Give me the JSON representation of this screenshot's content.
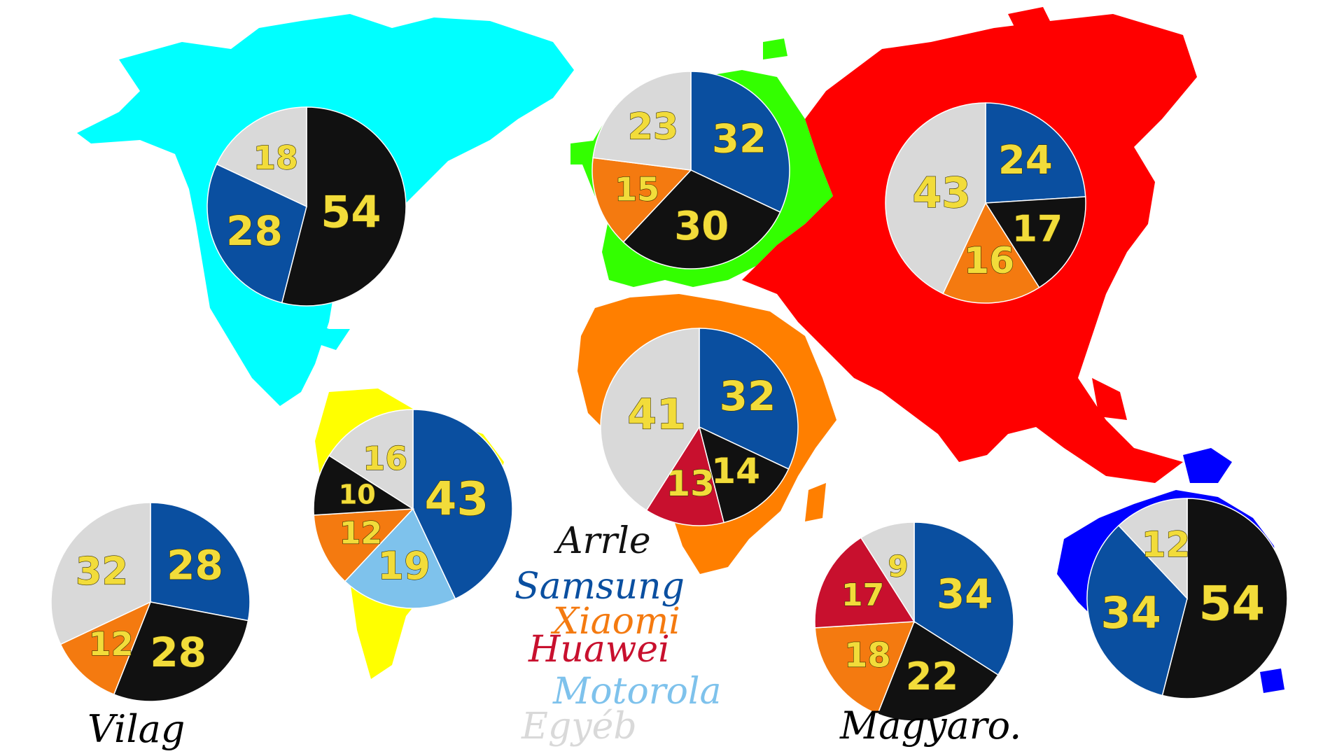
{
  "colors": {
    "Apple": "#111111",
    "Samsung": "#0a4fa0",
    "Xiaomi": "#f47a10",
    "Huawei": "#c8102e",
    "Motorola": "#7ec2ec",
    "Egyéb": "#d9d9d9"
  },
  "map_colors": {
    "north_america": "#00ffff",
    "south_america": "#ffff00",
    "europe": "#33ff00",
    "africa": "#ff7f00",
    "asia": "#ff0000",
    "oceania": "#0000ff"
  },
  "legend": [
    {
      "label": "Arrle",
      "brand": "Apple"
    },
    {
      "label": "Samsung",
      "brand": "Samsung"
    },
    {
      "label": "Xiaomi",
      "brand": "Xiaomi"
    },
    {
      "label": "Huawei",
      "brand": "Huawei"
    },
    {
      "label": "Motorola",
      "brand": "Motorola"
    },
    {
      "label": "Egyéb",
      "brand": "Egyéb"
    }
  ],
  "captions": {
    "world": "Vilag",
    "hungary": "Magyaro."
  },
  "chart_data": [
    {
      "type": "pie",
      "id": "north-america",
      "slices": [
        {
          "brand": "Apple",
          "value": 54
        },
        {
          "brand": "Samsung",
          "value": 28
        },
        {
          "brand": "Egyéb",
          "value": 18
        }
      ]
    },
    {
      "type": "pie",
      "id": "europe",
      "slices": [
        {
          "brand": "Samsung",
          "value": 32
        },
        {
          "brand": "Apple",
          "value": 30
        },
        {
          "brand": "Xiaomi",
          "value": 15
        },
        {
          "brand": "Egyéb",
          "value": 23
        }
      ]
    },
    {
      "type": "pie",
      "id": "asia",
      "slices": [
        {
          "brand": "Samsung",
          "value": 24
        },
        {
          "brand": "Apple",
          "value": 17
        },
        {
          "brand": "Xiaomi",
          "value": 16
        },
        {
          "brand": "Egyéb",
          "value": 43
        }
      ]
    },
    {
      "type": "pie",
      "id": "africa",
      "slices": [
        {
          "brand": "Samsung",
          "value": 32
        },
        {
          "brand": "Apple",
          "value": 14
        },
        {
          "brand": "Huawei",
          "value": 13
        },
        {
          "brand": "Egyéb",
          "value": 41
        }
      ]
    },
    {
      "type": "pie",
      "id": "south-america",
      "slices": [
        {
          "brand": "Samsung",
          "value": 43
        },
        {
          "brand": "Motorola",
          "value": 19
        },
        {
          "brand": "Xiaomi",
          "value": 12
        },
        {
          "brand": "Apple",
          "value": 10
        },
        {
          "brand": "Egyéb",
          "value": 16
        }
      ]
    },
    {
      "type": "pie",
      "id": "world",
      "slices": [
        {
          "brand": "Samsung",
          "value": 28
        },
        {
          "brand": "Apple",
          "value": 28
        },
        {
          "brand": "Xiaomi",
          "value": 12
        },
        {
          "brand": "Egyéb",
          "value": 32
        }
      ]
    },
    {
      "type": "pie",
      "id": "hungary",
      "slices": [
        {
          "brand": "Samsung",
          "value": 34
        },
        {
          "brand": "Apple",
          "value": 22
        },
        {
          "brand": "Xiaomi",
          "value": 18
        },
        {
          "brand": "Huawei",
          "value": 17
        },
        {
          "brand": "Egyéb",
          "value": 9
        }
      ]
    },
    {
      "type": "pie",
      "id": "oceania",
      "slices": [
        {
          "brand": "Apple",
          "value": 54
        },
        {
          "brand": "Samsung",
          "value": 34
        },
        {
          "brand": "Egyéb",
          "value": 12
        }
      ]
    }
  ]
}
